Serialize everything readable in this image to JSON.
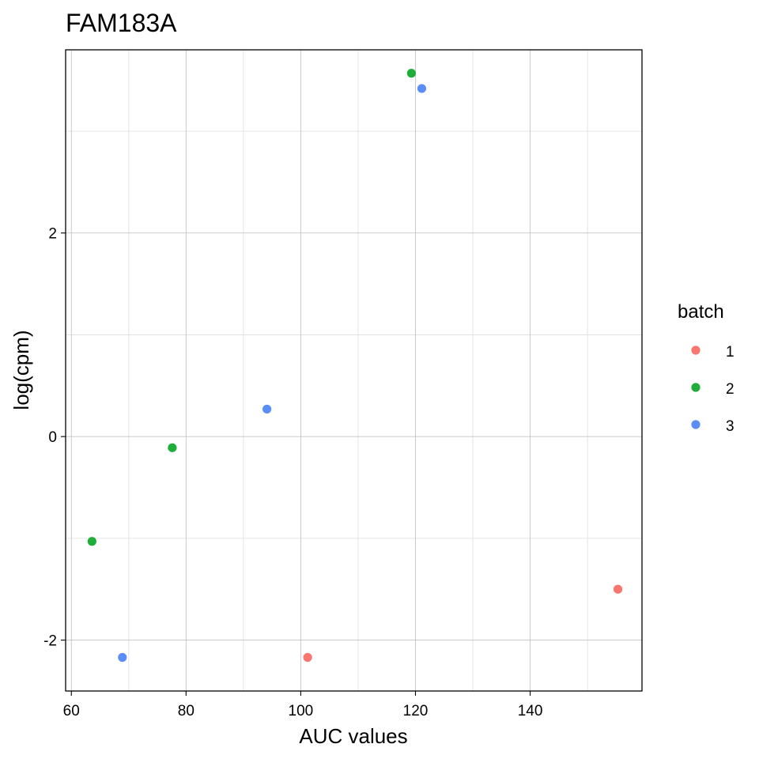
{
  "chart_data": {
    "type": "scatter",
    "title": "FAM183A",
    "xlabel": "AUC values",
    "ylabel": "log(cpm)",
    "xlim": [
      59,
      159.5
    ],
    "ylim": [
      -2.5,
      3.8
    ],
    "x_ticks": [
      60,
      80,
      100,
      120,
      140
    ],
    "x_minor_ticks": [
      70,
      90,
      110,
      130,
      150
    ],
    "y_ticks": [
      -2,
      0,
      2
    ],
    "y_minor_ticks": [
      -1,
      1,
      3
    ],
    "grid": true,
    "legend": {
      "title": "batch",
      "placement": "right"
    },
    "series": [
      {
        "name": "1",
        "color": "#F8766D",
        "points": [
          {
            "x": 101.2,
            "y": -2.17
          },
          {
            "x": 155.3,
            "y": -1.5
          }
        ]
      },
      {
        "name": "2",
        "color": "#1FAE3A",
        "points": [
          {
            "x": 63.6,
            "y": -1.03
          },
          {
            "x": 77.6,
            "y": -0.11
          },
          {
            "x": 119.3,
            "y": 3.57
          }
        ]
      },
      {
        "name": "3",
        "color": "#5B8DF7",
        "points": [
          {
            "x": 68.9,
            "y": -2.17
          },
          {
            "x": 94.1,
            "y": 0.27
          },
          {
            "x": 121.1,
            "y": 3.42
          }
        ]
      }
    ]
  }
}
